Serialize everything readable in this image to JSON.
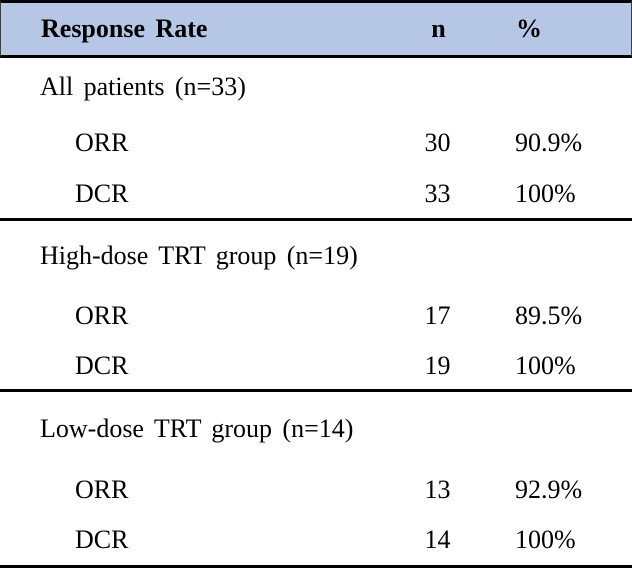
{
  "colors": {
    "header_bg": "#b5c7e5",
    "rule_black": "#000000",
    "header_edge": "#3f3f3f",
    "text": "#000000"
  },
  "table": {
    "header": {
      "response_rate": "Response Rate",
      "n": "n",
      "percent": "%"
    },
    "sections": [
      {
        "heading": "All patients (n=33)",
        "rows": [
          {
            "label": "ORR",
            "n": "30",
            "percent": "90.9%"
          },
          {
            "label": "DCR",
            "n": "33",
            "percent": "100%"
          }
        ]
      },
      {
        "heading": "High-dose TRT group (n=19)",
        "rows": [
          {
            "label": "ORR",
            "n": "17",
            "percent": "89.5%"
          },
          {
            "label": "DCR",
            "n": "19",
            "percent": "100%"
          }
        ]
      },
      {
        "heading": "Low-dose TRT group (n=14)",
        "rows": [
          {
            "label": "ORR",
            "n": "13",
            "percent": "92.9%"
          },
          {
            "label": "DCR",
            "n": "14",
            "percent": "100%"
          }
        ]
      }
    ]
  }
}
